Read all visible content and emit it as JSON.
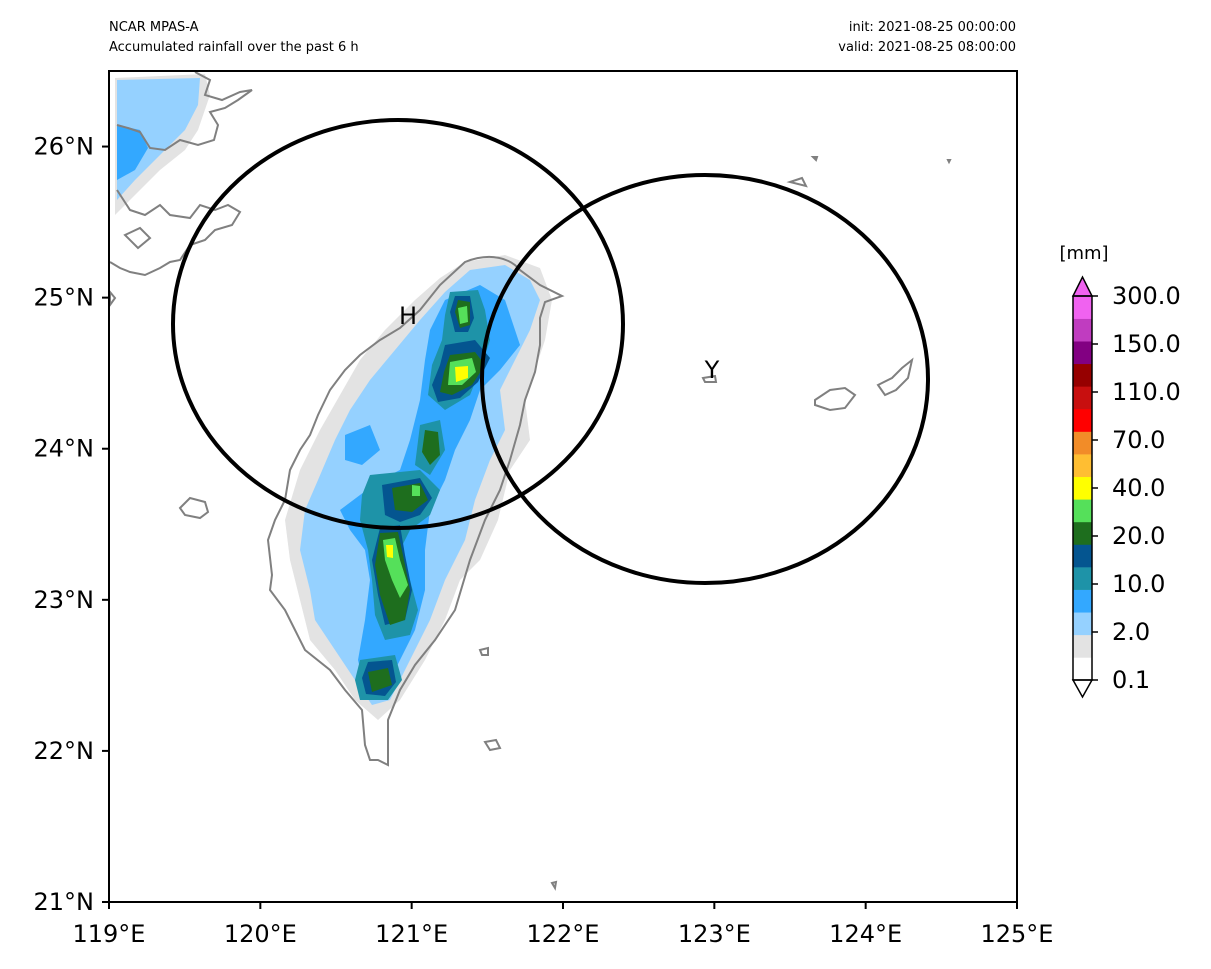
{
  "header": {
    "model": "NCAR MPAS-A",
    "description": "Accumulated rainfall over the past 6 h",
    "init": "init: 2021-08-25 00:00:00",
    "valid": "valid: 2021-08-25 08:00:00"
  },
  "map": {
    "lon_range": [
      119,
      125
    ],
    "lat_range": [
      21,
      26.5
    ],
    "x_ticks": [
      "119°E",
      "120°E",
      "121°E",
      "122°E",
      "123°E",
      "124°E",
      "125°E"
    ],
    "y_ticks": [
      "21°N",
      "22°N",
      "23°N",
      "24°N",
      "25°N",
      "26°N"
    ],
    "circles": [
      {
        "label": "H",
        "center_lon": 120.9,
        "center_lat": 24.85,
        "radius_deg": 1.48
      },
      {
        "label": "Y",
        "center_lon": 122.95,
        "center_lat": 24.47,
        "radius_deg": 1.48
      }
    ]
  },
  "colorbar": {
    "unit": "[mm]",
    "tick_labels": [
      "0.1",
      "2.0",
      "10.0",
      "20.0",
      "40.0",
      "70.0",
      "110.0",
      "150.0",
      "300.0"
    ],
    "colors": [
      "#ffffff",
      "#e3e3e3",
      "#95d1ff",
      "#33a8ff",
      "#1e93a8",
      "#045590",
      "#1e6e1e",
      "#55e05a",
      "#ffff00",
      "#ffbe32",
      "#f28c28",
      "#ff0000",
      "#c80f0f",
      "#960000",
      "#820082",
      "#c03cc0",
      "#f062f0"
    ]
  }
}
